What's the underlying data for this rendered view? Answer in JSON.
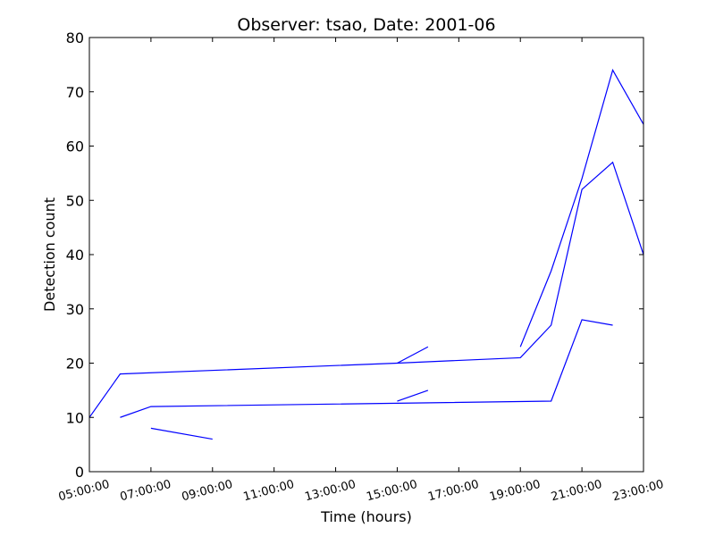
{
  "chart_data": {
    "type": "line",
    "title": "Observer: tsao, Date: 2001-06",
    "xlabel": "Time (hours)",
    "ylabel": "Detection count",
    "xlim": [
      "05:00:00",
      "23:00:00"
    ],
    "ylim": [
      0,
      80
    ],
    "x_ticks": [
      "05:00:00",
      "07:00:00",
      "09:00:00",
      "11:00:00",
      "13:00:00",
      "15:00:00",
      "17:00:00",
      "19:00:00",
      "21:00:00",
      "23:00:00"
    ],
    "y_ticks": [
      0,
      10,
      20,
      30,
      40,
      50,
      60,
      70,
      80
    ],
    "grid": false,
    "line_color": "#0000ff",
    "segments": [
      {
        "points": [
          [
            "05:00:00",
            10
          ],
          [
            "06:00:00",
            18
          ],
          [
            "15:00:00",
            20
          ],
          [
            "19:00:00",
            21
          ],
          [
            "20:00:00",
            27
          ],
          [
            "21:00:00",
            52
          ],
          [
            "22:00:00",
            57
          ],
          [
            "23:00:00",
            40
          ]
        ]
      },
      {
        "points": [
          [
            "06:00:00",
            10
          ],
          [
            "07:00:00",
            12
          ],
          [
            "20:00:00",
            13
          ],
          [
            "21:00:00",
            28
          ],
          [
            "22:00:00",
            27
          ]
        ]
      },
      {
        "points": [
          [
            "07:00:00",
            8
          ],
          [
            "09:00:00",
            6
          ]
        ]
      },
      {
        "points": [
          [
            "15:00:00",
            20
          ],
          [
            "16:00:00",
            23
          ]
        ]
      },
      {
        "points": [
          [
            "15:00:00",
            13
          ],
          [
            "16:00:00",
            15
          ]
        ]
      },
      {
        "points": [
          [
            "19:00:00",
            23
          ],
          [
            "20:00:00",
            37
          ],
          [
            "21:00:00",
            54
          ],
          [
            "22:00:00",
            74
          ],
          [
            "23:00:00",
            64
          ]
        ]
      }
    ]
  }
}
